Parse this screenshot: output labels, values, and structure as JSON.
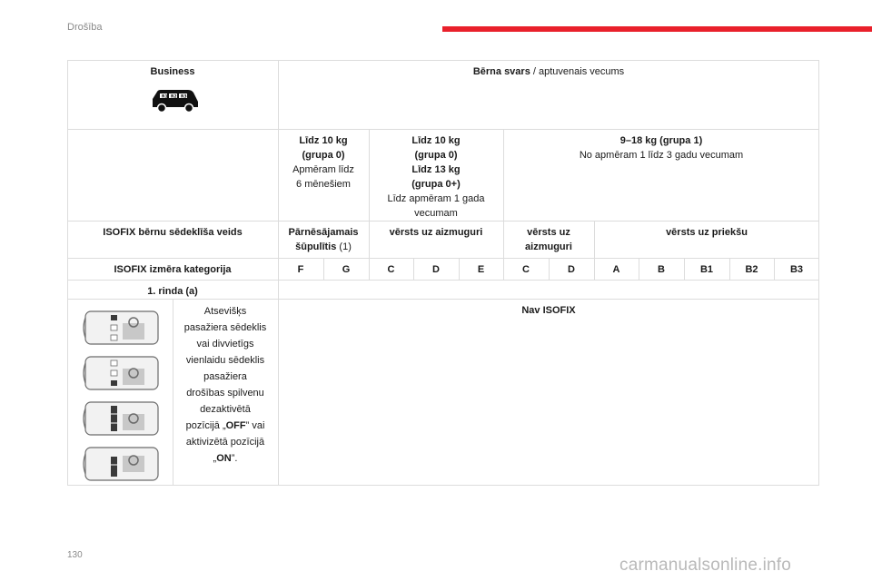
{
  "header": {
    "section_title": "Drošība",
    "accent_color": "#e9202b"
  },
  "footer": {
    "page_number": "130",
    "watermark": "carmanualsonline.info"
  },
  "table": {
    "vehicle_label": "Business",
    "vehicle_icon": "van-with-three-rows-icon",
    "child_weight_bold": "Bērna svars",
    "child_weight_rest": " / aptuvenais vecums",
    "group0_a": {
      "line1": "Līdz 10 kg",
      "line2": "(grupa 0)",
      "line3": "Apmēram līdz",
      "line4": "6 mēnešiem"
    },
    "group0_b": {
      "line1": "Līdz 10 kg",
      "line2": "(grupa 0)",
      "line3": "Līdz 13 kg",
      "line4": "(grupa 0+)",
      "line5": "Līdz apmēram 1 gada",
      "line6": "vecumam"
    },
    "group1": {
      "line1": "9–18 kg (grupa 1)",
      "line2": "No apmēram 1 līdz 3 gadu vecumam"
    },
    "seat_type_label": "ISOFIX bērnu sēdeklīša veids",
    "carrycot_bold": "Pārnēsājamais",
    "carrycot_bold2": "šūpulītis",
    "carrycot_rest": " (1)",
    "rear_facing_1": "vērsts uz aizmuguri",
    "rear_facing_2a": "vērsts uz",
    "rear_facing_2b": "aizmuguri",
    "forward_facing": "vērsts uz priekšu",
    "size_category_label": "ISOFIX izmēra kategorija",
    "categories": [
      "F",
      "G",
      "C",
      "D",
      "E",
      "C",
      "D",
      "A",
      "B",
      "B1",
      "B2",
      "B3"
    ],
    "row_label": "1. rinda (a)",
    "seat_description": [
      "Atsevišķs",
      "pasažiera sēdeklis",
      "vai divvietīgs",
      "vienlaidu sēdeklis",
      "pasažiera",
      "drošības spilvenu",
      "dezaktivētā",
      "pozīcijā „",
      "OFF",
      "” vai",
      "aktivizētā pozīcijā",
      "„",
      "ON",
      "”."
    ],
    "no_isofix": "Nav ISOFIX",
    "seat_diagram_icons": [
      "car-seat-layout-icon-1",
      "car-seat-layout-icon-2",
      "car-seat-layout-icon-3",
      "car-seat-layout-icon-4"
    ]
  }
}
